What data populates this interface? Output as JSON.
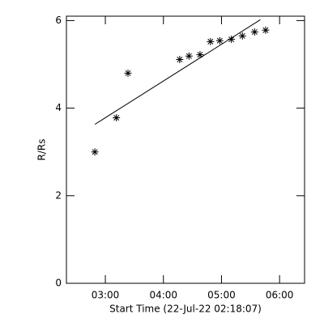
{
  "chart_data": {
    "type": "scatter",
    "xlabel": "Start Time (22-Jul-22 02:18:07)",
    "ylabel": "R/Rs",
    "points": {
      "x": [
        2.82,
        3.19,
        3.39,
        4.28,
        4.44,
        4.63,
        4.81,
        4.97,
        5.17,
        5.36,
        5.57,
        5.76
      ],
      "values": [
        3.0,
        3.78,
        4.8,
        5.11,
        5.19,
        5.22,
        5.52,
        5.54,
        5.57,
        5.65,
        5.74,
        5.78
      ],
      "marker": "asterisk",
      "color": "#000000"
    },
    "fit": {
      "x": [
        2.82,
        5.67
      ],
      "values": [
        3.63,
        6.02
      ],
      "color": "#000000"
    },
    "xlim": [
      2.33,
      6.43
    ],
    "ylim": [
      0,
      6.1
    ],
    "xticks": [
      {
        "value": 3,
        "label": "03:00"
      },
      {
        "value": 4,
        "label": "04:00"
      },
      {
        "value": 5,
        "label": "05:00"
      },
      {
        "value": 6,
        "label": "06:00"
      }
    ],
    "yticks": [
      0,
      2,
      4,
      6
    ]
  }
}
